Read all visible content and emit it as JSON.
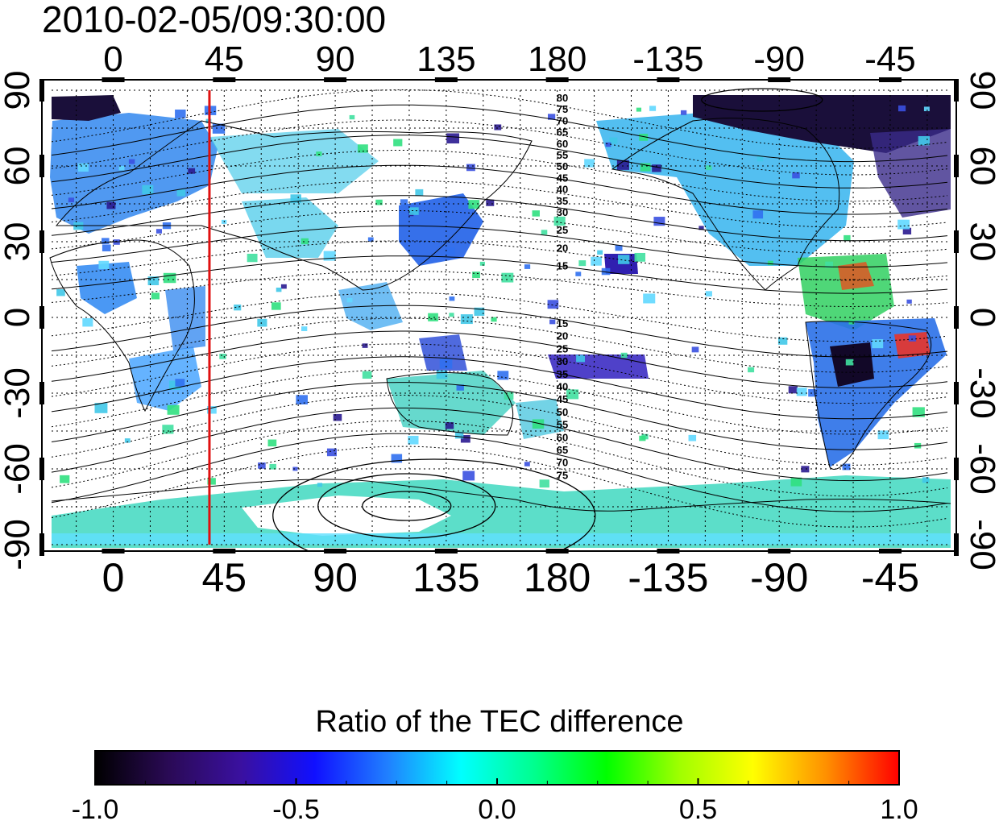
{
  "title": "2010-02-05/09:30:00",
  "map": {
    "lon_start": -25,
    "lon_end": 339.5,
    "lat_min": -90,
    "lat_max": 90,
    "lon_ticks": [
      "0",
      "45",
      "90",
      "135",
      "180",
      "-135",
      "-90",
      "-45"
    ],
    "lon_tick_values": [
      0,
      45,
      90,
      135,
      180,
      225,
      270,
      315
    ],
    "lat_ticks": [
      "90",
      "60",
      "30",
      "0",
      "-30",
      "-60",
      "-90"
    ],
    "lat_tick_values": [
      90,
      60,
      30,
      0,
      -30,
      -60,
      -90
    ],
    "marker_longitude": 39,
    "marker_color": "#e01010",
    "magnetic_latitude_labels_north": [
      "80",
      "75",
      "70",
      "65",
      "60",
      "55",
      "50",
      "45",
      "40",
      "35",
      "30",
      "25",
      "20",
      "15"
    ],
    "magnetic_latitude_labels_south": [
      "15",
      "20",
      "25",
      "30",
      "35",
      "40",
      "45",
      "50",
      "55",
      "60",
      "65",
      "70",
      "75"
    ]
  },
  "colorbar": {
    "title": "Ratio of the TEC difference",
    "tick_labels": [
      "-1.0",
      "-0.5",
      "0.0",
      "0.5",
      "1.0"
    ],
    "tick_values": [
      -1.0,
      -0.5,
      0.0,
      0.5,
      1.0
    ],
    "min": -1.0,
    "max": 1.0,
    "colors": [
      "#000000",
      "#2a0a55",
      "#3a10a0",
      "#1010ff",
      "#2080ff",
      "#00ffff",
      "#00ff90",
      "#00ff00",
      "#a0ff00",
      "#ffff00",
      "#ff9000",
      "#ff0000"
    ]
  }
}
